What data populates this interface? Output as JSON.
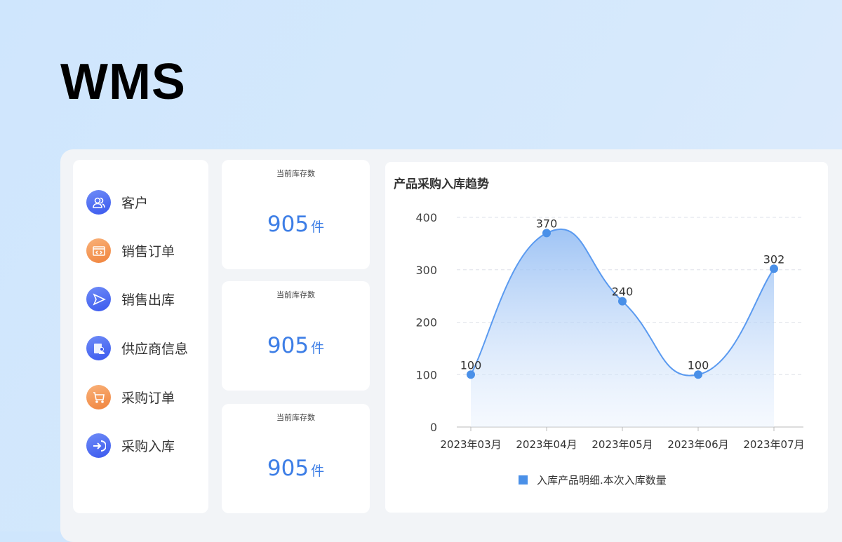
{
  "app_title": "WMS",
  "menu": [
    {
      "label": "客户",
      "icon": "users-icon",
      "color": "blue"
    },
    {
      "label": "销售订单",
      "icon": "code-window-icon",
      "color": "orange"
    },
    {
      "label": "销售出库",
      "icon": "send-icon",
      "color": "blue"
    },
    {
      "label": "供应商信息",
      "icon": "supplier-card-icon",
      "color": "blue"
    },
    {
      "label": "采购订单",
      "icon": "cart-icon",
      "color": "orange"
    },
    {
      "label": "采购入库",
      "icon": "arrow-in-icon",
      "color": "blue"
    }
  ],
  "stats": [
    {
      "label": "当前库存数",
      "value": "905",
      "unit": "件"
    },
    {
      "label": "当前库存数",
      "value": "905",
      "unit": "件"
    },
    {
      "label": "当前库存数",
      "value": "905",
      "unit": "件"
    }
  ],
  "colors": {
    "accent": "#3d7ee6",
    "line": "#5a9af0",
    "point": "#4a90e8"
  },
  "chart_data": {
    "type": "area",
    "title": "产品采购入库趋势",
    "categories": [
      "2023年03月",
      "2023年04月",
      "2023年05月",
      "2023年06月",
      "2023年07月"
    ],
    "series": [
      {
        "name": "入库产品明细.本次入库数量",
        "values": [
          100,
          370,
          240,
          100,
          302
        ]
      }
    ],
    "yticks": [
      0,
      100,
      200,
      300,
      400
    ],
    "ylim": [
      0,
      400
    ],
    "grid": true,
    "smooth": true,
    "legend": "bottom"
  }
}
